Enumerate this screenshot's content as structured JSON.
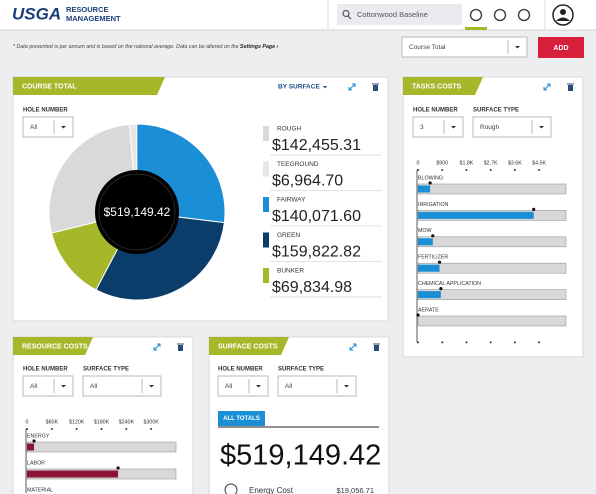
{
  "header": {
    "logo": "USGA",
    "app_name_1": "RESOURCE",
    "app_name_2": "MANAGEMENT",
    "search": "Cottonwood Baseline"
  },
  "note": {
    "text": "* Data presented is per annum and is based on the national average. Data can be altered on the ",
    "link": "Settings Page ›"
  },
  "toolbar": {
    "course_select": "Course Total",
    "add_button": "ADD"
  },
  "course_total": {
    "title": "COURSE TOTAL",
    "view": "BY SURFACE",
    "hole_label": "HOLE NUMBER",
    "hole_value": "All",
    "total": "$519,149.42",
    "chart": {
      "type": "donut",
      "series": [
        {
          "name": "TEEGROUND",
          "value": 6964.7,
          "label": "$6,964.70",
          "color": "#e6e6e6"
        },
        {
          "name": "FAIRWAY",
          "value": 140071.6,
          "label": "$140,071.60",
          "color": "#1a8fd6"
        },
        {
          "name": "GREEN",
          "value": 159822.82,
          "label": "$159,822.82",
          "color": "#0b3d6b"
        },
        {
          "name": "BUNKER",
          "value": 69834.98,
          "label": "$69,834.98",
          "color": "#a6b82a"
        },
        {
          "name": "ROUGH",
          "value": 142455.31,
          "label": "$142,455.31",
          "color": "#d9d9d9"
        }
      ],
      "legend_order": [
        4,
        0,
        1,
        2,
        3
      ]
    }
  },
  "tasks_costs": {
    "title": "TASKS COSTS",
    "hole_label": "HOLE NUMBER",
    "hole_value": "3",
    "surface_label": "SURFACE TYPE",
    "surface_value": "Rough",
    "chart": {
      "type": "bar",
      "color": "#1a8fd6",
      "xlim": [
        0,
        5500
      ],
      "xticks": [
        0,
        {
          "value": 900,
          "label": "$900"
        },
        {
          "value": 1800,
          "label": "$1.8K"
        },
        {
          "value": 2700,
          "label": "$2.7K"
        },
        {
          "value": 3600,
          "label": "$3.6K"
        },
        {
          "value": 4500,
          "label": "$4.5K"
        }
      ],
      "categories": [
        "BLOWING",
        "IRRIGATION",
        "MOW",
        "FERTILIZER",
        "CHEMICAL APPLICATION",
        "AERATE"
      ],
      "values": [
        450,
        4300,
        550,
        800,
        850,
        0
      ]
    }
  },
  "resource_costs": {
    "title": "RESOURCE COSTS",
    "hole_label": "HOLE NUMBER",
    "hole_value": "All",
    "surface_label": "SURFACE TYPE",
    "surface_value": "All",
    "chart": {
      "type": "bar",
      "color": "#8a1538",
      "xlim": [
        0,
        360000
      ],
      "xticks": [
        0,
        {
          "value": 60000,
          "label": "$60K"
        },
        {
          "value": 120000,
          "label": "$120K"
        },
        {
          "value": 180000,
          "label": "$180K"
        },
        {
          "value": 240000,
          "label": "$240K"
        },
        {
          "value": 300000,
          "label": "$300K"
        }
      ],
      "categories": [
        "ENERGY",
        "LABOR",
        "MATERIAL"
      ],
      "values": [
        17000,
        220000,
        null
      ]
    }
  },
  "surface_costs": {
    "title": "SURFACE COSTS",
    "hole_label": "HOLE NUMBER",
    "hole_value": "All",
    "surface_label": "SURFACE TYPE",
    "surface_value": "All",
    "tag": "ALL TOTALS",
    "total": "$519,149.42",
    "rows": [
      {
        "name": "Energy Cost",
        "value": "$19,056.71"
      }
    ]
  }
}
